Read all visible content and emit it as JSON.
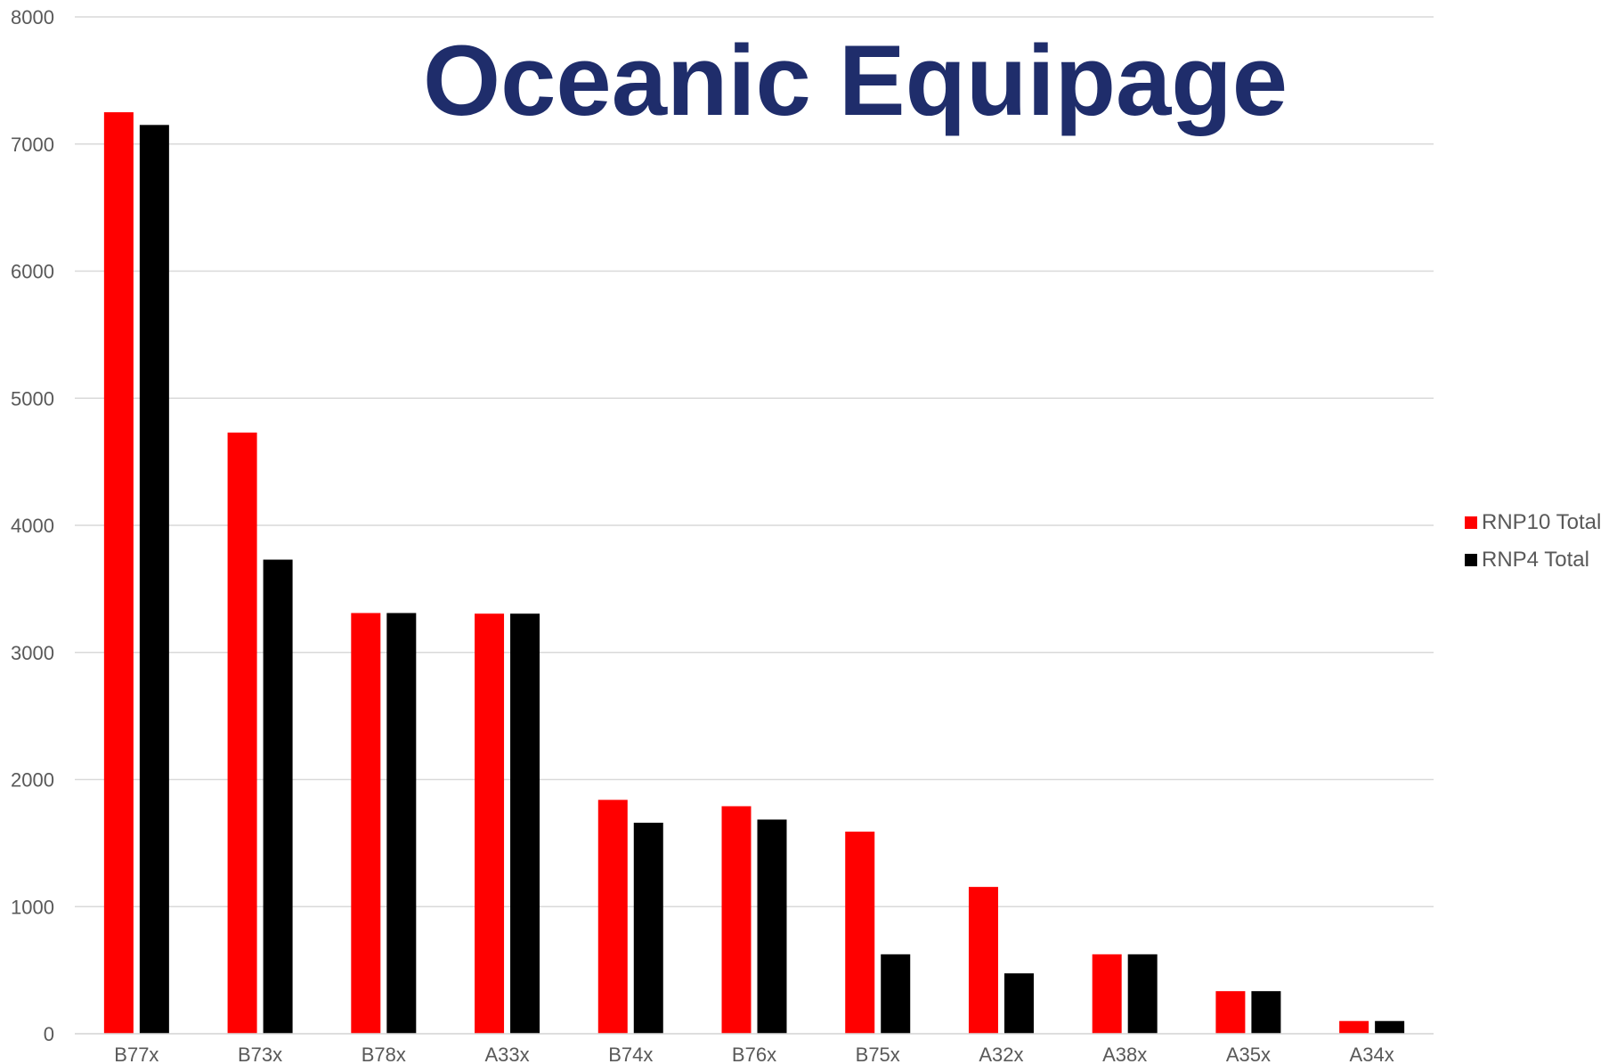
{
  "colors": {
    "title": "#1f2d6b",
    "grid": "#d9d9d9",
    "axis_text": "#595959"
  },
  "chart_data": {
    "type": "bar",
    "title": "Oceanic Equipage",
    "xlabel": "",
    "ylabel": "",
    "ylim": [
      0,
      8000
    ],
    "yticks": [
      0,
      1000,
      2000,
      3000,
      4000,
      5000,
      6000,
      7000,
      8000
    ],
    "grid": true,
    "legend_position": "right",
    "categories": [
      "B77x",
      "B73x",
      "B78x",
      "A33x",
      "B74x",
      "B76x",
      "B75x",
      "A32x",
      "A38x",
      "A35x",
      "A34x"
    ],
    "series": [
      {
        "name": "RNP10 Total",
        "color": "#ff0000",
        "values": [
          7250,
          4730,
          3310,
          3305,
          1840,
          1790,
          1590,
          1155,
          625,
          335,
          100
        ]
      },
      {
        "name": "RNP4 Total",
        "color": "#000000",
        "values": [
          7150,
          3730,
          3310,
          3305,
          1660,
          1685,
          625,
          475,
          625,
          335,
          100
        ]
      }
    ]
  }
}
